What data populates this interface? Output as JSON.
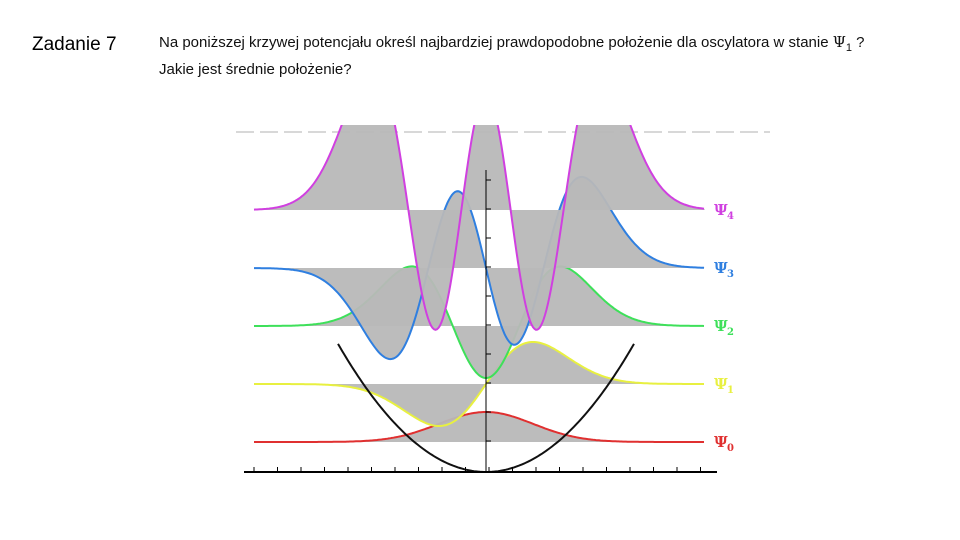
{
  "slide": {
    "label": "Zadanie 7"
  },
  "question": {
    "line1_before": "Na poniższej krzywej potencjału określ najbardziej prawdopodobne położenie dla oscylatora w stanie ",
    "psi_symbol": "Ψ",
    "psi_subscript": "1",
    "line1_after": " ?",
    "line2": "Jakie jest średnie położenie?"
  },
  "figure": {
    "colors": {
      "potential": "#111111",
      "fill": "#b8b8b8",
      "axis": "#000000",
      "dashed": "#cccccc"
    },
    "states": [
      {
        "n": 0,
        "symbol": "Ψ",
        "subscript": "0",
        "color": "#e03030"
      },
      {
        "n": 1,
        "symbol": "Ψ",
        "subscript": "1",
        "color": "#e8f040"
      },
      {
        "n": 2,
        "symbol": "Ψ",
        "subscript": "2",
        "color": "#3ee05a"
      },
      {
        "n": 3,
        "symbol": "Ψ",
        "subscript": "3",
        "color": "#2f7fe0"
      },
      {
        "n": 4,
        "symbol": "Ψ",
        "subscript": "4",
        "color": "#d040e0"
      }
    ]
  }
}
